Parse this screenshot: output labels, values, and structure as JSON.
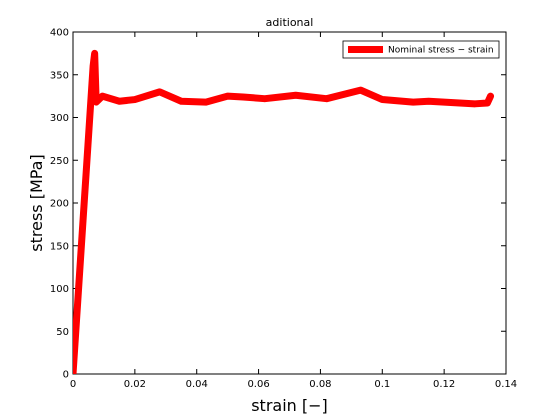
{
  "chart_data": {
    "type": "line",
    "title": "aditional",
    "xlabel": "strain [−]",
    "ylabel": "stress [MPa]",
    "xlim": [
      0,
      0.14
    ],
    "ylim": [
      0,
      400
    ],
    "xticks": [
      0,
      0.02,
      0.04,
      0.06,
      0.08,
      0.1,
      0.12,
      0.14
    ],
    "xtick_labels": [
      "0",
      "0.02",
      "0.04",
      "0.06",
      "0.08",
      "0.1",
      "0.12",
      "0.14"
    ],
    "yticks": [
      0,
      50,
      100,
      150,
      200,
      250,
      300,
      350,
      400
    ],
    "ytick_labels": [
      "0",
      "50",
      "100",
      "150",
      "200",
      "250",
      "300",
      "350",
      "400"
    ],
    "grid": false,
    "legend_position": "top-right",
    "series": [
      {
        "name": "Nominal stress − strain",
        "color": "#ff0000",
        "x": [
          0,
          0.0065,
          0.007,
          0.0075,
          0.0095,
          0.015,
          0.02,
          0.028,
          0.035,
          0.043,
          0.05,
          0.055,
          0.062,
          0.072,
          0.082,
          0.093,
          0.1,
          0.11,
          0.115,
          0.125,
          0.13,
          0.134,
          0.135
        ],
        "y": [
          0,
          360,
          375,
          318,
          325,
          319,
          321,
          330,
          319,
          318,
          325,
          324,
          322,
          326,
          322,
          332,
          321,
          318,
          319,
          317,
          316,
          317,
          325
        ]
      }
    ]
  }
}
